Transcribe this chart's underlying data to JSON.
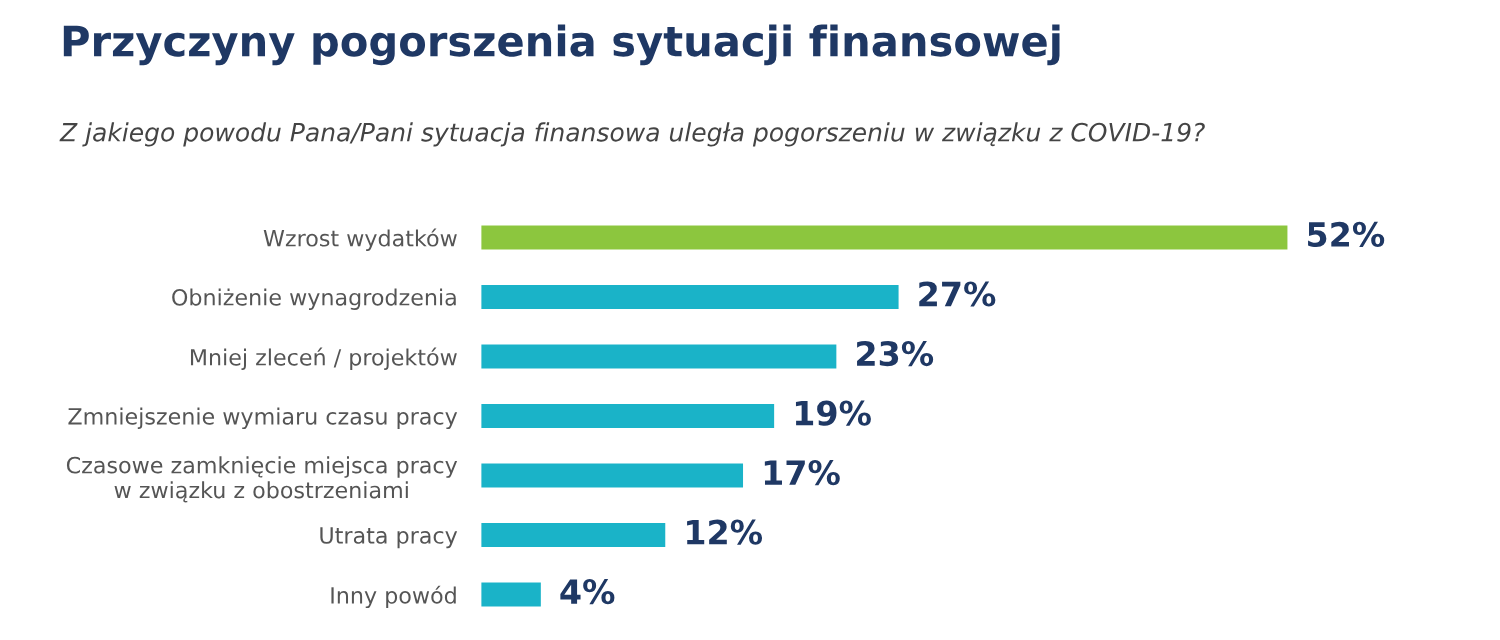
{
  "chart_data": {
    "type": "bar",
    "orientation": "horizontal",
    "title": "Przyczyny pogorszenia sytuacji finansowej",
    "subtitle": "Z jakiego powodu Pana/Pani sytuacja finansowa uległa pogorszeniu w związku z COVID-19?",
    "categories": [
      "Wzrost wydatków",
      "Obniżenie wynagrodzenia",
      "Mniej zleceń / projektów",
      "Zmniejszenie wymiaru czasu pracy",
      "Czasowe zamknięcie miejsca pracy\nw związku z obostrzeniami",
      "Utrata pracy",
      "Inny powód"
    ],
    "values": [
      52,
      27,
      23,
      19,
      17,
      12,
      4
    ],
    "colors": [
      "#8cc63e",
      "#1ab3c8",
      "#1ab3c8",
      "#1ab3c8",
      "#1ab3c8",
      "#1ab3c8",
      "#1ab3c8"
    ],
    "value_labels": [
      "52%",
      "27%",
      "23%",
      "19%",
      "17%",
      "12%",
      "4%"
    ],
    "grid": false,
    "legend": false
  }
}
